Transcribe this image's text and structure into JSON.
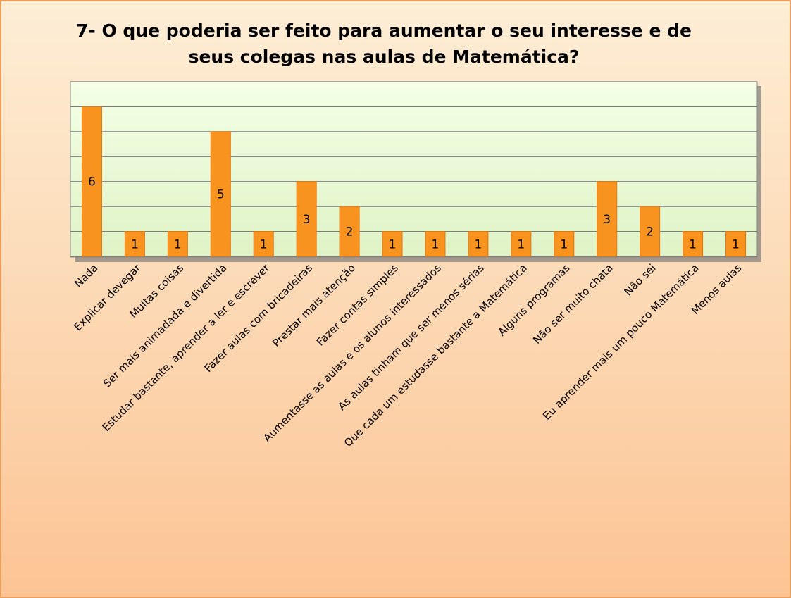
{
  "chart_data": {
    "type": "bar",
    "title": [
      "7- O que poderia ser feito para aumentar o seu interesse e de",
      "seus colegas nas aulas de Matemática?"
    ],
    "categories": [
      "Nada",
      "Explicar devegar",
      "Muitas coisas",
      "Ser mais animadada e divertida",
      "Estudar bastante, aprender a ler e escrever",
      "Fazer aulas com bricadeiras",
      "Prestar mais atenção",
      "Fazer contas simples",
      "Aumentasse as aulas e os alunos interessados",
      "As aulas tinham que ser menos sérias",
      "Que cada um estudasse bastante a Matemática",
      "Alguns programas",
      "Não ser muito chata",
      "Não sei",
      "Eu aprender mais um pouco Matemática",
      "Menos aulas"
    ],
    "values": [
      6,
      1,
      1,
      5,
      1,
      3,
      2,
      1,
      1,
      1,
      1,
      1,
      3,
      2,
      1,
      1
    ],
    "color": "#f7931e",
    "ylim": [
      0,
      7
    ],
    "yticks": [
      0,
      1,
      2,
      3,
      4,
      5,
      6,
      7
    ],
    "grid": true
  }
}
